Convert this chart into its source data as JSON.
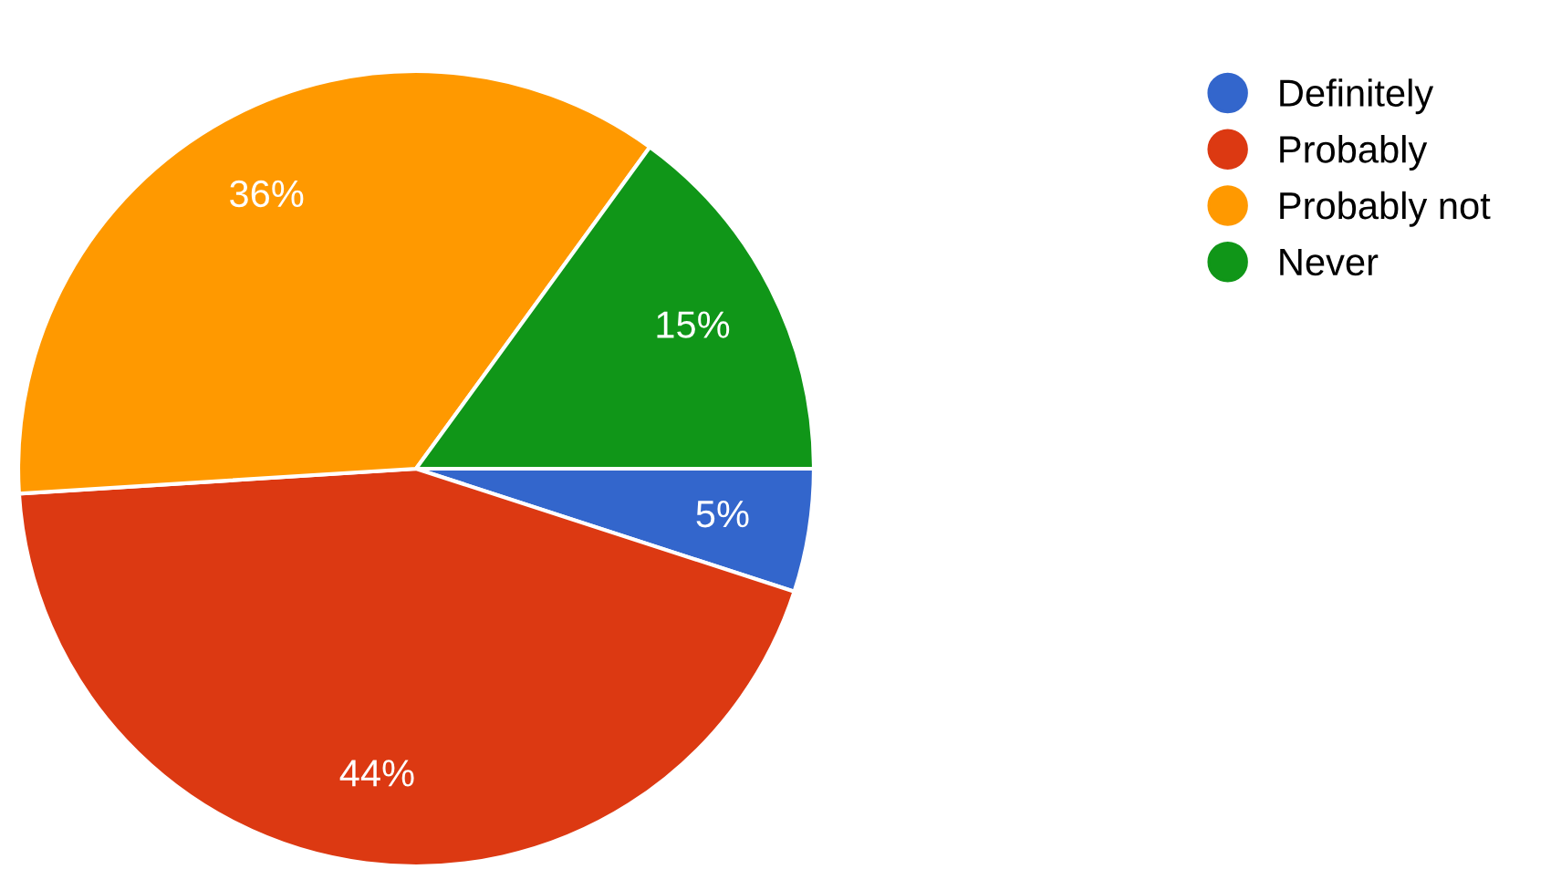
{
  "chart_data": {
    "type": "pie",
    "categories": [
      "Definitely",
      "Probably",
      "Probably not",
      "Never"
    ],
    "values": [
      5,
      44,
      36,
      15
    ],
    "colors": [
      "#3366cc",
      "#dc3912",
      "#ff9900",
      "#109618"
    ],
    "value_labels": [
      "5%",
      "44%",
      "36%",
      "15%"
    ],
    "legend": "top right"
  }
}
